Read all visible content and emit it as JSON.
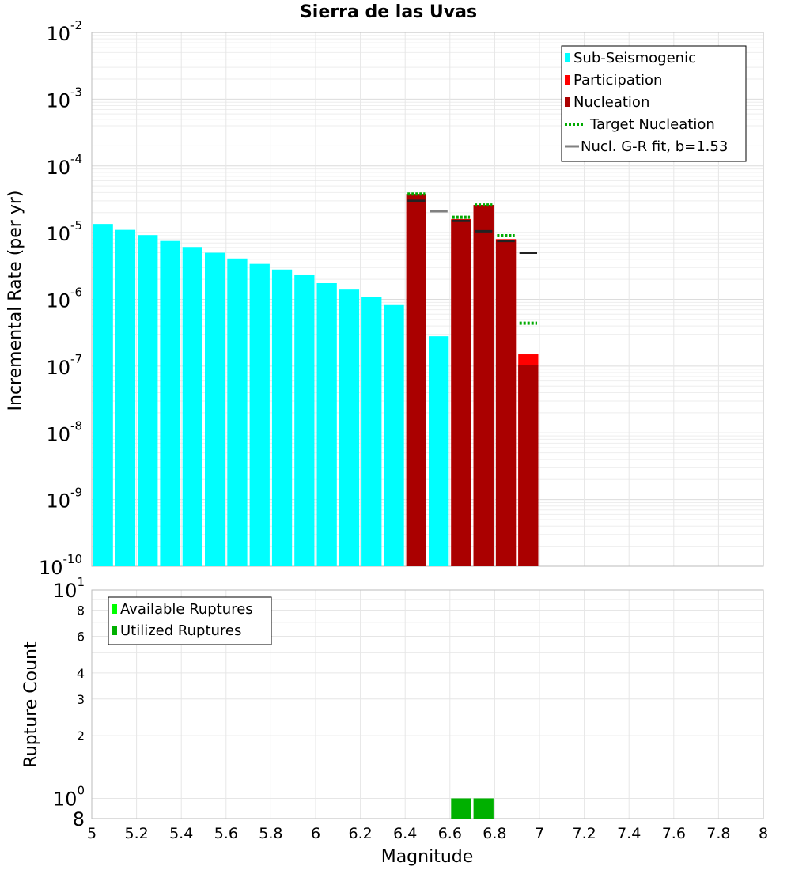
{
  "chart_data": [
    {
      "type": "bar",
      "title": "Sierra de las Uvas",
      "ylabel": "Incremental Rate (per yr)",
      "xlabel": "",
      "xlim": [
        5,
        8
      ],
      "ylim": [
        1e-10,
        0.01
      ],
      "yscale": "log",
      "bin_width": 0.1,
      "grid": true,
      "legend_position": "top-right",
      "y_tick_labels": [
        {
          "base": "10",
          "exp": "-10",
          "value": 1e-10
        },
        {
          "base": "10",
          "exp": "-9",
          "value": 1e-09
        },
        {
          "base": "10",
          "exp": "-8",
          "value": 1e-08
        },
        {
          "base": "10",
          "exp": "-7",
          "value": 1e-07
        },
        {
          "base": "10",
          "exp": "-6",
          "value": 1e-06
        },
        {
          "base": "10",
          "exp": "-5",
          "value": 1e-05
        },
        {
          "base": "10",
          "exp": "-4",
          "value": 0.0001
        },
        {
          "base": "10",
          "exp": "-3",
          "value": 0.001
        },
        {
          "base": "10",
          "exp": "-2",
          "value": 0.01
        }
      ],
      "legend": [
        {
          "name": "Sub-Seismogenic",
          "color": "#00ffff",
          "style": "bar"
        },
        {
          "name": "Participation",
          "color": "#ff0000",
          "style": "bar"
        },
        {
          "name": "Nucleation",
          "color": "#aa0000",
          "style": "bar"
        },
        {
          "name": "Target Nucleation",
          "color": "#00aa00",
          "style": "dotted"
        },
        {
          "name": "Nucl. G-R fit, b=1.53",
          "color": "#808080",
          "style": "line"
        }
      ],
      "series": [
        {
          "name": "Sub-Seismogenic",
          "color": "#00ffff",
          "x": [
            5.05,
            5.15,
            5.25,
            5.35,
            5.45,
            5.55,
            5.65,
            5.75,
            5.85,
            5.95,
            6.05,
            6.15,
            6.25,
            6.35,
            6.55
          ],
          "values": [
            1.35e-05,
            1.1e-05,
            9.2e-06,
            7.5e-06,
            6.1e-06,
            5e-06,
            4.1e-06,
            3.4e-06,
            2.8e-06,
            2.3e-06,
            1.75e-06,
            1.4e-06,
            1.1e-06,
            8.2e-07,
            2.8e-07
          ]
        },
        {
          "name": "Participation",
          "color": "#ff0000",
          "x": [
            6.45,
            6.65,
            6.75,
            6.85,
            6.95
          ],
          "values": [
            3.8e-05,
            1.6e-05,
            2.6e-05,
            8e-06,
            1.5e-07
          ]
        },
        {
          "name": "Nucleation",
          "color": "#aa0000",
          "x": [
            6.45,
            6.65,
            6.75,
            6.85,
            6.95
          ],
          "values": [
            3.8e-05,
            1.55e-05,
            2.6e-05,
            7.8e-06,
            1.05e-07
          ]
        },
        {
          "name": "Target Nucleation",
          "color": "#00aa00",
          "x": [
            6.45,
            6.65,
            6.75,
            6.85,
            6.95
          ],
          "values": [
            3.8e-05,
            1.7e-05,
            2.6e-05,
            9e-06,
            4.4e-07
          ]
        },
        {
          "name": "Nucl. G-R fit, b=1.53",
          "color": "#808080",
          "x": [
            6.45,
            6.55,
            6.65,
            6.75,
            6.85,
            6.95
          ],
          "values": [
            3e-05,
            2.1e-05,
            1.5e-05,
            1.05e-05,
            7.5e-06,
            5e-06
          ]
        }
      ]
    },
    {
      "type": "bar",
      "title": "",
      "xlabel": "Magnitude",
      "ylabel": "Rupture Count",
      "xlim": [
        5,
        8
      ],
      "ylim": [
        0.8,
        10
      ],
      "yscale": "log",
      "bin_width": 0.1,
      "grid": true,
      "legend_position": "top-left",
      "x_ticks": [
        "5",
        "5.2",
        "5.4",
        "5.6",
        "5.8",
        "6",
        "6.2",
        "6.4",
        "6.6",
        "6.8",
        "7",
        "7.2",
        "7.4",
        "7.6",
        "7.8",
        "8"
      ],
      "y_tick_labels": [
        {
          "base": "8",
          "exp": "",
          "value": 0.8
        },
        {
          "base": "10",
          "exp": "0",
          "value": 1
        },
        {
          "base": "2",
          "exp": "",
          "value": 2
        },
        {
          "base": "3",
          "exp": "",
          "value": 3
        },
        {
          "base": "4",
          "exp": "",
          "value": 4
        },
        {
          "base": "6",
          "exp": "",
          "value": 6
        },
        {
          "base": "8",
          "exp": "",
          "value": 8
        },
        {
          "base": "10",
          "exp": "1",
          "value": 10
        }
      ],
      "legend": [
        {
          "name": "Available Ruptures",
          "color": "#00ff00",
          "style": "bar"
        },
        {
          "name": "Utilized Ruptures",
          "color": "#00b000",
          "style": "bar"
        }
      ],
      "series": [
        {
          "name": "Available Ruptures",
          "color": "#00ff00",
          "x": [
            6.65,
            6.75
          ],
          "values": [
            1,
            1
          ]
        },
        {
          "name": "Utilized Ruptures",
          "color": "#00b000",
          "x": [
            6.65,
            6.75
          ],
          "values": [
            1,
            1
          ]
        }
      ]
    }
  ]
}
